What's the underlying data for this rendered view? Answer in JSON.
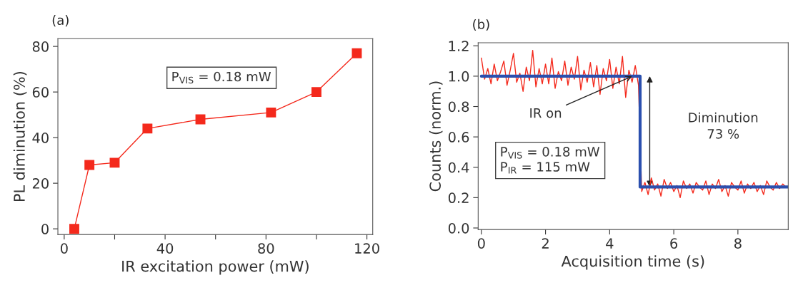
{
  "chart_data": [
    {
      "type": "line",
      "title": "(a)",
      "xlabel": "IR excitation power (mW)",
      "ylabel": "PL diminution (%)",
      "marker": "square",
      "grid": false,
      "xlim": [
        -2.5,
        122.3
      ],
      "ylim": [
        -2.5,
        83.4
      ],
      "xticks": [
        0,
        {
          "value": 20,
          "label": null
        },
        40,
        {
          "value": 60,
          "label": null
        },
        80,
        {
          "value": 100,
          "label": null
        },
        120
      ],
      "yticks": [
        0,
        20,
        40,
        60,
        80
      ],
      "series": [
        {
          "color": "#f4291c",
          "x": [
            4,
            10,
            20,
            33,
            54,
            82,
            100,
            116
          ],
          "values": [
            0,
            28,
            29,
            44,
            48,
            51,
            60,
            77
          ]
        }
      ],
      "annotations": [
        "P$_{VIS}$ = 0.18 mW"
      ]
    },
    {
      "type": "line",
      "title": "(b)",
      "xlabel": "Acquisition time (s)",
      "ylabel": "Counts (norm.)",
      "grid": false,
      "xlim": [
        -0.1,
        9.57
      ],
      "ylim": [
        -0.01,
        1.22
      ],
      "xticks": [
        0,
        2,
        4,
        6,
        8
      ],
      "yticks": [
        {
          "value": 0,
          "label": "0.0"
        },
        0.2,
        0.4,
        0.6,
        0.8,
        {
          "value": 1,
          "label": "1.0"
        },
        1.2
      ],
      "series": [
        {
          "color": "#f4291c",
          "x": [
            0,
            0.1,
            0.2,
            0.3,
            0.4,
            0.5,
            0.6,
            0.7,
            0.8,
            0.9,
            1.0,
            1.1,
            1.2,
            1.3,
            1.4,
            1.5,
            1.6,
            1.7,
            1.8,
            1.9,
            2.0,
            2.1,
            2.2,
            2.3,
            2.4,
            2.5,
            2.6,
            2.7,
            2.8,
            2.9,
            3.0,
            3.1,
            3.2,
            3.3,
            3.4,
            3.5,
            3.6,
            3.7,
            3.8,
            3.9,
            4.0,
            4.1,
            4.2,
            4.3,
            4.4,
            4.5,
            4.6,
            4.7,
            4.8,
            4.9,
            5.0,
            5.1,
            5.2,
            5.3,
            5.4,
            5.5,
            5.6,
            5.7,
            5.8,
            5.9,
            6.0,
            6.1,
            6.2,
            6.3,
            6.4,
            6.5,
            6.6,
            6.7,
            6.8,
            6.9,
            7.0,
            7.1,
            7.2,
            7.3,
            7.4,
            7.5,
            7.6,
            7.7,
            7.8,
            7.9,
            8.0,
            8.1,
            8.2,
            8.3,
            8.4,
            8.5,
            8.6,
            8.7,
            8.8,
            8.9,
            9.0,
            9.1,
            9.2,
            9.3,
            9.4,
            9.5
          ],
          "values": [
            1.12,
            0.98,
            1.05,
            0.95,
            1.08,
            0.97,
            1.03,
            1.1,
            0.94,
            1.04,
            1.15,
            0.96,
            1.02,
            0.9,
            1.06,
            0.97,
            1.17,
            0.93,
            1.05,
            0.95,
            1.08,
            0.95,
            1.12,
            0.92,
            1.03,
            0.97,
            1.1,
            0.94,
            1.06,
            0.98,
            1.13,
            0.91,
            1.04,
            0.96,
            1.09,
            0.93,
            1.07,
            0.88,
            1.05,
            0.97,
            1.11,
            0.92,
            1.06,
            0.95,
            1.13,
            0.86,
            1.04,
            0.96,
            1.07,
            0.94,
            0.24,
            0.3,
            0.22,
            0.33,
            0.25,
            0.29,
            0.21,
            0.32,
            0.26,
            0.3,
            0.24,
            0.28,
            0.2,
            0.31,
            0.26,
            0.29,
            0.23,
            0.3,
            0.27,
            0.25,
            0.31,
            0.22,
            0.29,
            0.26,
            0.32,
            0.24,
            0.28,
            0.21,
            0.3,
            0.27,
            0.25,
            0.31,
            0.23,
            0.29,
            0.26,
            0.3,
            0.24,
            0.28,
            0.22,
            0.31,
            0.27,
            0.25,
            0.3,
            0.26,
            0.29,
            0.27
          ]
        },
        {
          "color": "#2b4fae",
          "x": [
            0,
            4.95,
            4.95,
            9.57
          ],
          "values": [
            1.0,
            1.0,
            0.27,
            0.27
          ]
        }
      ],
      "annotations": [
        {
          "text": "IR on",
          "x": 4.7,
          "y": 1.0
        },
        "Diminution\n73 %",
        "P$_{VIS}$ = 0.18 mW",
        "P$_{IR}$ = 115 mW"
      ]
    }
  ]
}
